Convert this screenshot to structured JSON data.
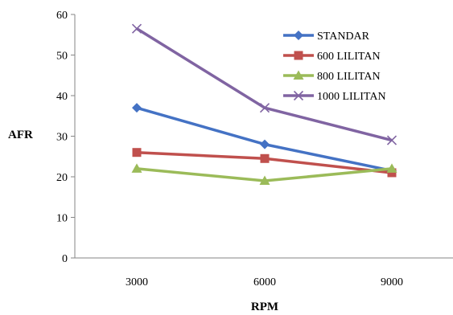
{
  "chart_data": {
    "type": "line",
    "title": "",
    "xlabel": "RPM",
    "ylabel": "AFR",
    "categories": [
      "3000",
      "6000",
      "9000"
    ],
    "ylim": [
      0,
      60
    ],
    "yticks": [
      0,
      10,
      20,
      30,
      40,
      50,
      60
    ],
    "grid": false,
    "legend_position": "top-right",
    "series": [
      {
        "name": "STANDAR",
        "values": [
          37,
          28,
          21.5
        ],
        "color": "#4472C4",
        "marker": "diamond"
      },
      {
        "name": "600 LILITAN",
        "values": [
          26,
          24.5,
          21
        ],
        "color": "#C0504D",
        "marker": "square"
      },
      {
        "name": "800 LILITAN",
        "values": [
          22,
          19,
          22
        ],
        "color": "#9BBB59",
        "marker": "triangle"
      },
      {
        "name": "1000 LILITAN",
        "values": [
          56.5,
          37,
          29
        ],
        "color": "#8064A2",
        "marker": "x"
      }
    ]
  }
}
